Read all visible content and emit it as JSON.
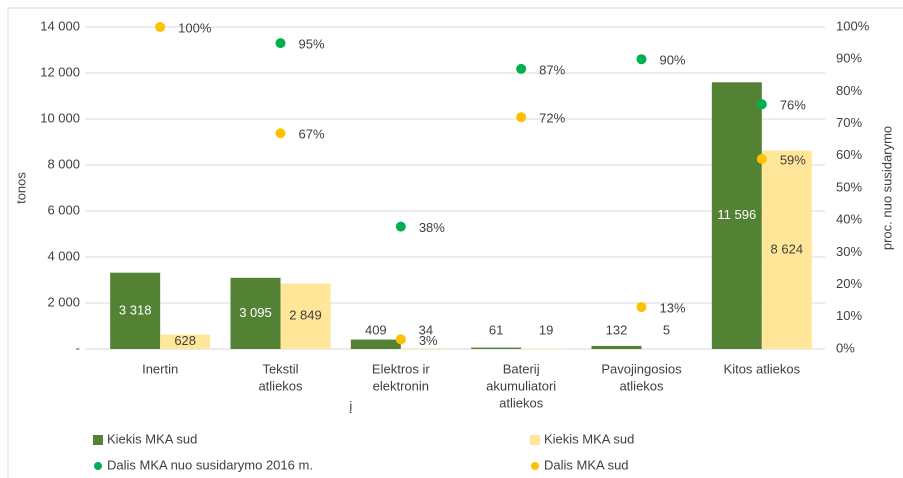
{
  "chart_data": {
    "type": "bar",
    "categories": [
      [
        "Inertin"
      ],
      [
        "Tekstil",
        "atliekos"
      ],
      [
        "Elektros ir",
        "elektronin",
        "į"
      ],
      [
        "Baterij",
        "akumuliatori",
        "atliekos"
      ],
      [
        "Pavojingosios",
        "atliekos"
      ],
      [
        "Kitos atliekos"
      ]
    ],
    "ylabel": "tonos",
    "y2label": "proc. nuo susidarymo",
    "ylim": [
      0,
      14000
    ],
    "yticks": [
      {
        "value": 0,
        "label": "-"
      },
      {
        "value": 2000,
        "label": "2 000"
      },
      {
        "value": 4000,
        "label": "4 000"
      },
      {
        "value": 6000,
        "label": "6 000"
      },
      {
        "value": 8000,
        "label": "8 000"
      },
      {
        "value": 10000,
        "label": "10 000"
      },
      {
        "value": 12000,
        "label": "12 000"
      },
      {
        "value": 14000,
        "label": "14 000"
      }
    ],
    "y2lim": [
      0,
      100
    ],
    "y2ticks": [
      {
        "value": 0,
        "label": "0%"
      },
      {
        "value": 10,
        "label": "10%"
      },
      {
        "value": 20,
        "label": "20%"
      },
      {
        "value": 30,
        "label": "30%"
      },
      {
        "value": 40,
        "label": "40%"
      },
      {
        "value": 50,
        "label": "50%"
      },
      {
        "value": 60,
        "label": "60%"
      },
      {
        "value": 70,
        "label": "70%"
      },
      {
        "value": 80,
        "label": "80%"
      },
      {
        "value": 90,
        "label": "90%"
      },
      {
        "value": 100,
        "label": "100%"
      }
    ],
    "grid": true,
    "series": [
      {
        "name": "Kiekis MKA sud",
        "type": "bar",
        "color": "#548235",
        "values": [
          3318,
          3095,
          409,
          61,
          132,
          11596
        ],
        "value_labels": [
          "3 318",
          "3 095",
          "409",
          "61",
          "132",
          "11 596"
        ]
      },
      {
        "name": "Kiekis MKA sud",
        "type": "bar",
        "color": "#ffe699",
        "values": [
          628,
          2849,
          34,
          19,
          5,
          8624
        ],
        "value_labels": [
          "628",
          "2 849",
          "34",
          "19",
          "5",
          "8 624"
        ]
      },
      {
        "name": "Dalis MKA nuo susidarymo 2016 m.",
        "type": "scatter",
        "axis": "y2",
        "color": "#00b050",
        "values": [
          null,
          95,
          38,
          87,
          90,
          76
        ],
        "value_labels": [
          null,
          "95%",
          "38%",
          "87%",
          "90%",
          "76%"
        ]
      },
      {
        "name": "Dalis MKA sud",
        "type": "scatter",
        "axis": "y2",
        "color": "#ffc000",
        "values": [
          100,
          67,
          3,
          72,
          13,
          59
        ],
        "value_labels": [
          "100%",
          "67%",
          "3%",
          "72%",
          "13%",
          "59%"
        ]
      }
    ]
  }
}
